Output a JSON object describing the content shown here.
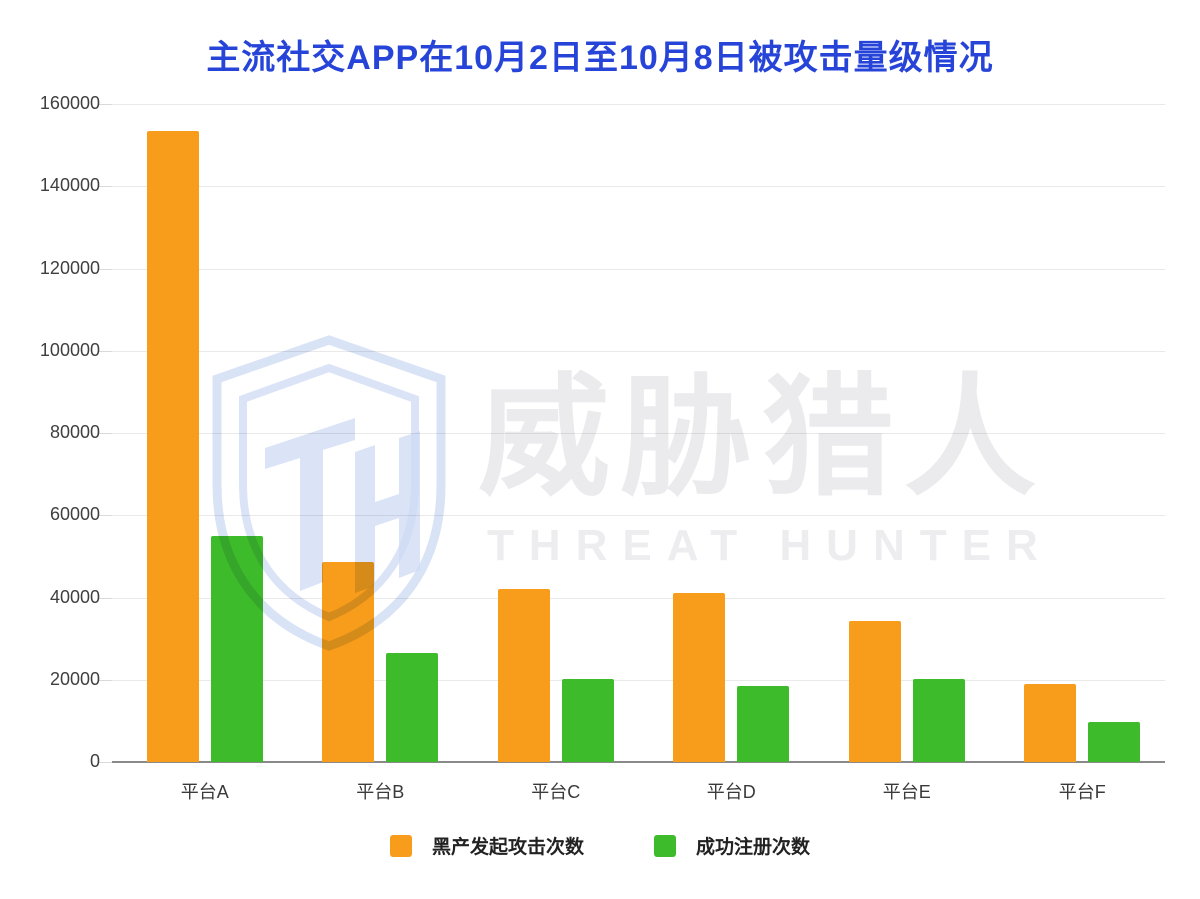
{
  "title": "主流社交APP在10月2日至10月8日被攻击量级情况",
  "watermark": {
    "logo": "threat-hunter-shield-logo",
    "cn_text": "威胁猎人",
    "en_text": "THREAT HUNTER"
  },
  "legend": [
    {
      "label": "黑产发起攻击次数",
      "color": "#f89c1b"
    },
    {
      "label": "成功注册次数",
      "color": "#3ebb2b"
    }
  ],
  "colors": {
    "title_blue": "#2744d9",
    "attack_orange": "#f89c1b",
    "register_green": "#3ebb2b",
    "gridline": "#e9e9e9",
    "axis": "#8a8a8a",
    "tick_text": "#3f3f3f",
    "watermark_gray": "#ebebed",
    "watermark_blue": "#ccd9f3"
  },
  "chart_data": {
    "type": "bar",
    "title": "主流社交APP在10月2日至10月8日被攻击量级情况",
    "categories": [
      "平台A",
      "平台B",
      "平台C",
      "平台D",
      "平台E",
      "平台F"
    ],
    "series": [
      {
        "name": "黑产发起攻击次数",
        "color": "#f89c1b",
        "values": [
          153500,
          48600,
          42000,
          41000,
          34200,
          19000
        ]
      },
      {
        "name": "成功注册次数",
        "color": "#3ebb2b",
        "values": [
          55000,
          26500,
          20200,
          18400,
          20300,
          9800
        ]
      }
    ],
    "xlabel": "",
    "ylabel": "",
    "ylim": [
      0,
      160000
    ],
    "y_ticks": [
      0,
      20000,
      40000,
      60000,
      80000,
      100000,
      120000,
      140000,
      160000
    ],
    "grid": true,
    "legend_position": "bottom"
  }
}
